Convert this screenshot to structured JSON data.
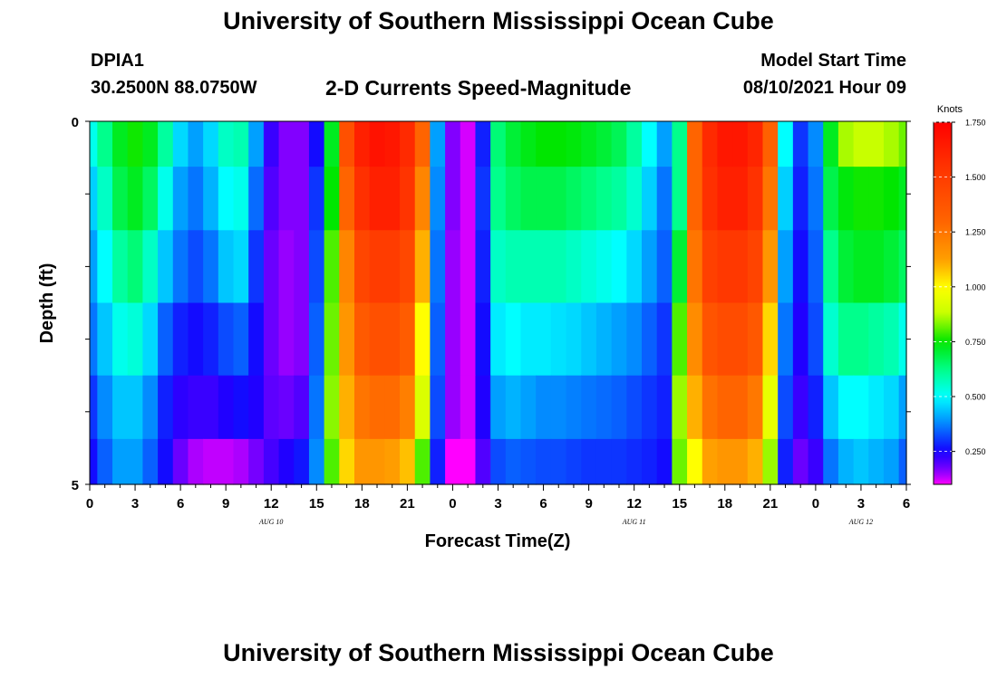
{
  "header": {
    "title": "University of Southern Mississippi Ocean Cube",
    "station_id": "DPIA1",
    "station_coords": "30.2500N  88.0750W",
    "model_start_label": "Model Start Time",
    "model_start_value": "08/10/2021 Hour 09",
    "footer_title": "University of Southern Mississippi Ocean Cube"
  },
  "chart_data": {
    "type": "heatmap",
    "title": "2-D Currents Speed-Magnitude",
    "xlabel": "Forecast Time(Z)",
    "ylabel": "Depth (ft)",
    "x_hours": [
      0,
      1,
      2,
      3,
      4,
      5,
      6,
      7,
      8,
      9,
      10,
      11,
      12,
      13,
      14,
      15,
      16,
      17,
      18,
      19,
      20,
      21,
      22,
      23,
      24,
      25,
      26,
      27,
      28,
      29,
      30,
      31,
      32,
      33,
      34,
      35,
      36,
      37,
      38,
      39,
      40,
      41,
      42,
      43,
      44,
      45,
      46,
      47,
      48,
      49,
      50,
      51,
      52,
      53,
      54
    ],
    "x_tick_labels": [
      "0",
      "3",
      "6",
      "9",
      "12",
      "15",
      "18",
      "21",
      "0",
      "3",
      "6",
      "9",
      "12",
      "15",
      "18",
      "21",
      "0",
      "3",
      "6"
    ],
    "date_labels": [
      {
        "text": "AUG  10",
        "hour": 12
      },
      {
        "text": "AUG  11",
        "hour": 36
      },
      {
        "text": "AUG  12",
        "hour": 51
      }
    ],
    "y_ticks": [
      0,
      1,
      2,
      3,
      4,
      5
    ],
    "y_tick_labels": [
      "0",
      "",
      "",
      "",
      "",
      "5"
    ],
    "ylim": [
      0,
      5
    ],
    "xlim": [
      0,
      54
    ],
    "depth_layers": [
      0.25,
      1.0,
      2.0,
      3.0,
      4.0,
      4.75
    ],
    "speed_knots": [
      [
        0.52,
        0.62,
        0.72,
        0.76,
        0.72,
        0.6,
        0.46,
        0.4,
        0.46,
        0.56,
        0.58,
        0.4,
        0.22,
        0.16,
        0.16,
        0.26,
        0.72,
        1.4,
        1.62,
        1.68,
        1.66,
        1.58,
        1.3,
        0.4,
        0.16,
        0.12,
        0.28,
        0.64,
        0.7,
        0.73,
        0.75,
        0.75,
        0.74,
        0.72,
        0.7,
        0.67,
        0.6,
        0.5,
        0.4,
        0.62,
        1.3,
        1.58,
        1.66,
        1.66,
        1.6,
        1.32,
        0.5,
        0.3,
        0.38,
        0.72,
        0.86,
        0.88,
        0.88,
        0.86,
        0.82
      ],
      [
        0.45,
        0.56,
        0.68,
        0.72,
        0.66,
        0.52,
        0.4,
        0.36,
        0.42,
        0.5,
        0.52,
        0.35,
        0.2,
        0.16,
        0.16,
        0.3,
        0.75,
        1.3,
        1.56,
        1.62,
        1.62,
        1.54,
        1.2,
        0.38,
        0.16,
        0.12,
        0.3,
        0.62,
        0.66,
        0.68,
        0.68,
        0.68,
        0.66,
        0.64,
        0.62,
        0.6,
        0.55,
        0.45,
        0.36,
        0.62,
        1.3,
        1.56,
        1.62,
        1.62,
        1.55,
        1.25,
        0.45,
        0.28,
        0.36,
        0.68,
        0.74,
        0.76,
        0.76,
        0.75,
        0.72
      ],
      [
        0.4,
        0.5,
        0.6,
        0.64,
        0.56,
        0.44,
        0.36,
        0.32,
        0.36,
        0.44,
        0.46,
        0.3,
        0.18,
        0.15,
        0.16,
        0.32,
        0.8,
        1.2,
        1.45,
        1.5,
        1.5,
        1.44,
        1.1,
        0.36,
        0.15,
        0.12,
        0.28,
        0.56,
        0.58,
        0.58,
        0.58,
        0.58,
        0.56,
        0.54,
        0.52,
        0.5,
        0.46,
        0.4,
        0.34,
        0.7,
        1.25,
        1.48,
        1.52,
        1.52,
        1.46,
        1.15,
        0.4,
        0.26,
        0.34,
        0.62,
        0.7,
        0.72,
        0.72,
        0.7,
        0.66
      ],
      [
        0.36,
        0.44,
        0.52,
        0.54,
        0.46,
        0.34,
        0.28,
        0.26,
        0.28,
        0.32,
        0.34,
        0.26,
        0.18,
        0.15,
        0.16,
        0.34,
        0.82,
        1.15,
        1.35,
        1.4,
        1.4,
        1.34,
        1.0,
        0.34,
        0.15,
        0.12,
        0.26,
        0.48,
        0.5,
        0.48,
        0.48,
        0.47,
        0.46,
        0.44,
        0.42,
        0.4,
        0.38,
        0.34,
        0.3,
        0.8,
        1.18,
        1.38,
        1.42,
        1.42,
        1.36,
        1.05,
        0.36,
        0.24,
        0.32,
        0.55,
        0.62,
        0.62,
        0.6,
        0.58,
        0.52
      ],
      [
        0.3,
        0.38,
        0.44,
        0.44,
        0.38,
        0.28,
        0.23,
        0.22,
        0.22,
        0.24,
        0.26,
        0.24,
        0.19,
        0.18,
        0.2,
        0.36,
        0.84,
        1.1,
        1.25,
        1.28,
        1.28,
        1.22,
        0.92,
        0.32,
        0.15,
        0.12,
        0.24,
        0.4,
        0.42,
        0.4,
        0.38,
        0.38,
        0.37,
        0.36,
        0.35,
        0.34,
        0.32,
        0.3,
        0.28,
        0.85,
        1.1,
        1.26,
        1.3,
        1.3,
        1.24,
        0.95,
        0.32,
        0.22,
        0.28,
        0.44,
        0.5,
        0.5,
        0.48,
        0.46,
        0.4
      ],
      [
        0.26,
        0.34,
        0.4,
        0.4,
        0.34,
        0.26,
        0.18,
        0.14,
        0.13,
        0.13,
        0.14,
        0.17,
        0.21,
        0.24,
        0.27,
        0.38,
        0.8,
        1.05,
        1.15,
        1.15,
        1.13,
        1.08,
        0.8,
        0.28,
        0.1,
        0.08,
        0.2,
        0.32,
        0.34,
        0.33,
        0.32,
        0.32,
        0.31,
        0.3,
        0.3,
        0.3,
        0.29,
        0.28,
        0.26,
        0.82,
        1.0,
        1.12,
        1.15,
        1.15,
        1.1,
        0.85,
        0.28,
        0.18,
        0.22,
        0.36,
        0.42,
        0.44,
        0.42,
        0.4,
        0.34
      ]
    ],
    "colorbar": {
      "label": "Knots",
      "min": 0.1,
      "max": 1.75,
      "ticks": [
        0.25,
        0.5,
        0.75,
        1.0,
        1.25,
        1.5,
        1.75
      ],
      "tick_labels": [
        "0.250",
        "0.500",
        "0.750",
        "1.000",
        "1.250",
        "1.500",
        "1.750"
      ]
    }
  }
}
